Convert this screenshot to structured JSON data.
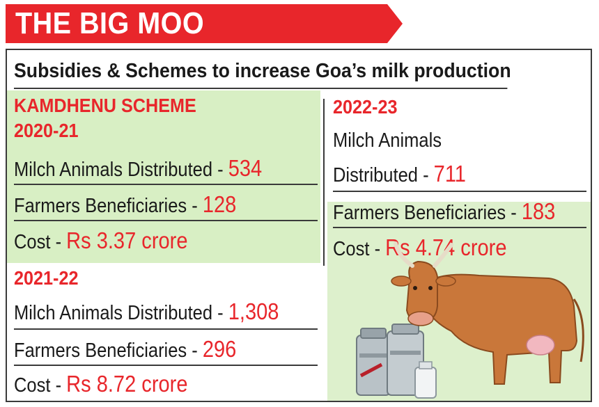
{
  "banner": {
    "title": "THE BIG MOO"
  },
  "subtitle": "Subsidies & Schemes to increase Goa’s milk production",
  "scheme": {
    "name": "KAMDHENU SCHEME",
    "years": [
      {
        "year": "2020-21",
        "animals_label": "Milch Animals Distributed - ",
        "animals_value": "534",
        "farmers_label": "Farmers Beneficiaries - ",
        "farmers_value": "128",
        "cost_label": "Cost - ",
        "cost_value": "Rs 3.37 crore"
      },
      {
        "year": "2021-22",
        "animals_label": "Milch Animals Distributed - ",
        "animals_value": "1,308",
        "farmers_label": "Farmers Beneficiaries - ",
        "farmers_value": "296",
        "cost_label": "Cost - ",
        "cost_value": "Rs 8.72 crore"
      },
      {
        "year": "2022-23",
        "animals_label_line1": "Milch Animals",
        "animals_label_line2": "Distributed - ",
        "animals_value": "711",
        "farmers_label": "Farmers Beneficiaries - ",
        "farmers_value": "183",
        "cost_label": "Cost - ",
        "cost_value": "Rs 4.74 crore"
      }
    ]
  },
  "colors": {
    "accent": "#e8262b",
    "green_light": "#d8efc4",
    "text": "#1a1a1a"
  },
  "illustration": "cow-with-milk-cans"
}
